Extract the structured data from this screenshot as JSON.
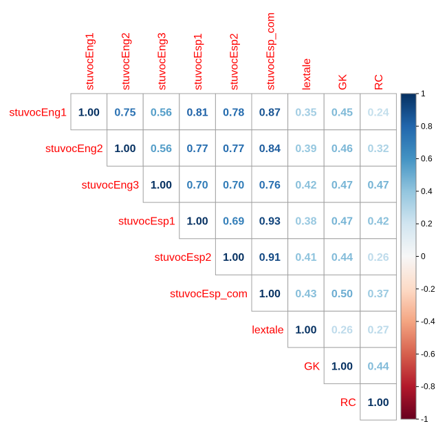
{
  "chart_data": {
    "type": "heatmap",
    "subtype": "correlation-matrix-upper",
    "variables": [
      "stuvocEng1",
      "stuvocEng2",
      "stuvocEng3",
      "stuvocEsp1",
      "stuvocEsp2",
      "stuvocEsp_com",
      "lextale",
      "GK",
      "RC"
    ],
    "matrix": [
      [
        1.0,
        0.75,
        0.56,
        0.81,
        0.78,
        0.87,
        0.35,
        0.45,
        0.24
      ],
      [
        null,
        1.0,
        0.56,
        0.77,
        0.77,
        0.84,
        0.39,
        0.46,
        0.32
      ],
      [
        null,
        null,
        1.0,
        0.7,
        0.7,
        0.76,
        0.42,
        0.47,
        0.47
      ],
      [
        null,
        null,
        null,
        1.0,
        0.69,
        0.93,
        0.38,
        0.47,
        0.42
      ],
      [
        null,
        null,
        null,
        null,
        1.0,
        0.91,
        0.41,
        0.44,
        0.26
      ],
      [
        null,
        null,
        null,
        null,
        null,
        1.0,
        0.43,
        0.5,
        0.37
      ],
      [
        null,
        null,
        null,
        null,
        null,
        null,
        1.0,
        0.26,
        0.27
      ],
      [
        null,
        null,
        null,
        null,
        null,
        null,
        null,
        1.0,
        0.44
      ],
      [
        null,
        null,
        null,
        null,
        null,
        null,
        null,
        null,
        1.0
      ]
    ],
    "value_labels": [
      [
        "1.00",
        "0.75",
        "0.56",
        "0.81",
        "0.78",
        "0.87",
        "0.35",
        "0.45",
        "0.24"
      ],
      [
        "",
        "1.00",
        "0.56",
        "0.77",
        "0.77",
        "0.84",
        "0.39",
        "0.46",
        "0.32"
      ],
      [
        "",
        "",
        "1.00",
        "0.70",
        "0.70",
        "0.76",
        "0.42",
        "0.47",
        "0.47"
      ],
      [
        "",
        "",
        "",
        "1.00",
        "0.69",
        "0.93",
        "0.38",
        "0.47",
        "0.42"
      ],
      [
        "",
        "",
        "",
        "",
        "1.00",
        "0.91",
        "0.41",
        "0.44",
        "0.26"
      ],
      [
        "",
        "",
        "",
        "",
        "",
        "1.00",
        "0.43",
        "0.50",
        "0.37"
      ],
      [
        "",
        "",
        "",
        "",
        "",
        "",
        "1.00",
        "0.26",
        "0.27"
      ],
      [
        "",
        "",
        "",
        "",
        "",
        "",
        "",
        "1.00",
        "0.44"
      ],
      [
        "",
        "",
        "",
        "",
        "",
        "",
        "",
        "",
        "1.00"
      ]
    ],
    "colorbar": {
      "range": [
        -1,
        1
      ],
      "ticks": [
        1,
        0.8,
        0.6,
        0.4,
        0.2,
        0,
        -0.2,
        -0.4,
        -0.6,
        -0.8,
        -1
      ],
      "tick_labels": [
        "1",
        "0.8",
        "0.6",
        "0.4",
        "0.2",
        "0",
        "-0.2",
        "-0.4",
        "-0.6",
        "-0.8",
        "-1"
      ],
      "colors": {
        "neg1": "#67001f",
        "neg_mid": "#d6604d",
        "zero": "#f7f7f7",
        "pos_mid": "#4393c3",
        "pos1": "#053061"
      },
      "placement": "right"
    },
    "label_color": "#ff0000",
    "grid": true
  }
}
